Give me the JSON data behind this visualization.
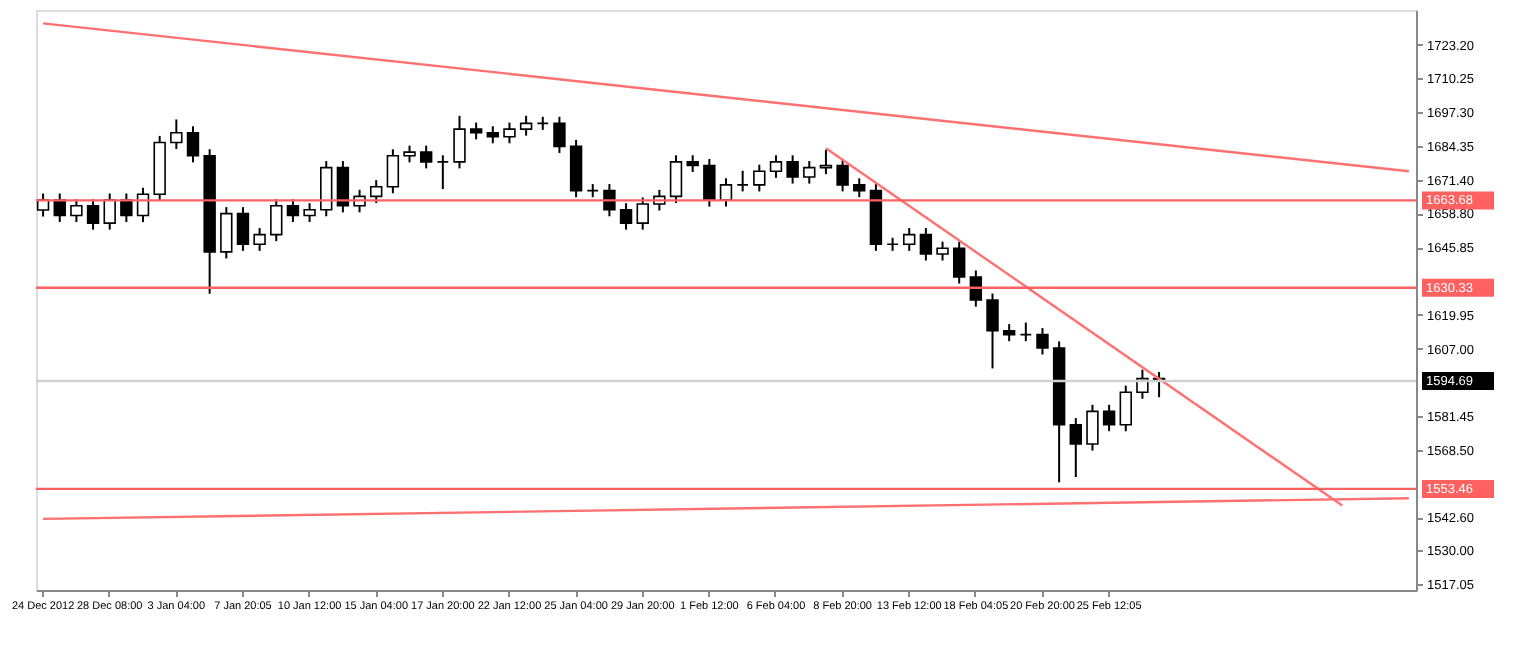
{
  "chart_data": {
    "type": "candlestick",
    "categories": [
      "24 Dec 2012",
      null,
      null,
      null,
      "28 Dec 08:00",
      null,
      null,
      null,
      "3 Jan 04:00",
      null,
      null,
      null,
      "7 Jan 20:05",
      null,
      null,
      null,
      "10 Jan 12:00",
      null,
      null,
      null,
      "15 Jan 04:00",
      null,
      null,
      null,
      "17 Jan 20:00",
      null,
      null,
      null,
      "22 Jan 12:00",
      null,
      null,
      null,
      "25 Jan 04:00",
      null,
      null,
      null,
      "29 Jan 20:00",
      null,
      null,
      null,
      "1 Feb 12:00",
      null,
      null,
      null,
      "6 Feb 04:00",
      null,
      null,
      null,
      "8 Feb 20:00",
      null,
      null,
      null,
      "13 Feb 12:00",
      null,
      null,
      null,
      "18 Feb 04:05",
      null,
      null,
      null,
      "20 Feb 20:00",
      null,
      null,
      null,
      "25 Feb 12:05",
      null,
      null,
      null,
      null,
      null,
      null,
      null,
      null,
      null,
      null,
      null,
      null,
      null,
      null,
      null,
      null,
      null,
      null
    ],
    "color": "#000000",
    "ohlc": [
      [
        1660.0,
        1666.3,
        1657.5,
        1663.8
      ],
      [
        1663.8,
        1666.3,
        1655.4,
        1657.9
      ],
      [
        1657.9,
        1664.1,
        1655.4,
        1661.6
      ],
      [
        1661.6,
        1664.1,
        1652.5,
        1655.0
      ],
      [
        1655.0,
        1666.3,
        1652.5,
        1663.8
      ],
      [
        1663.8,
        1666.3,
        1655.4,
        1657.9
      ],
      [
        1657.9,
        1668.5,
        1655.4,
        1666.0
      ],
      [
        1666.0,
        1688.3,
        1663.5,
        1685.8
      ],
      [
        1685.8,
        1694.6,
        1683.3,
        1689.5
      ],
      [
        1689.5,
        1692.0,
        1678.2,
        1680.7
      ],
      [
        1680.7,
        1683.2,
        1628.0,
        1644.0
      ],
      [
        1644.0,
        1661.1,
        1641.5,
        1658.6
      ],
      [
        1658.6,
        1661.1,
        1644.4,
        1646.9
      ],
      [
        1646.9,
        1653.1,
        1644.4,
        1650.6
      ],
      [
        1650.6,
        1664.1,
        1648.1,
        1661.6
      ],
      [
        1661.6,
        1664.1,
        1655.4,
        1657.9
      ],
      [
        1657.9,
        1662.6,
        1655.4,
        1660.1
      ],
      [
        1660.1,
        1678.7,
        1657.6,
        1676.2
      ],
      [
        1676.2,
        1678.7,
        1659.1,
        1661.6
      ],
      [
        1661.6,
        1667.7,
        1659.1,
        1665.2
      ],
      [
        1665.2,
        1671.4,
        1662.7,
        1668.9
      ],
      [
        1668.9,
        1683.2,
        1666.4,
        1680.7
      ],
      [
        1680.7,
        1684.6,
        1678.2,
        1682.1
      ],
      [
        1682.1,
        1684.6,
        1675.9,
        1678.4
      ],
      [
        1678.4,
        1680.9,
        1668.0,
        1678.4
      ],
      [
        1678.4,
        1696.0,
        1675.9,
        1690.9
      ],
      [
        1690.9,
        1693.4,
        1687.0,
        1689.5
      ],
      [
        1689.5,
        1692.0,
        1685.5,
        1688.0
      ],
      [
        1688.0,
        1693.4,
        1685.5,
        1690.9
      ],
      [
        1690.9,
        1696.0,
        1688.4,
        1693.1
      ],
      [
        1693.1,
        1695.6,
        1690.6,
        1693.1
      ],
      [
        1693.1,
        1695.6,
        1681.8,
        1684.3
      ],
      [
        1684.3,
        1686.8,
        1664.9,
        1667.4
      ],
      [
        1667.4,
        1669.9,
        1664.9,
        1667.4
      ],
      [
        1667.4,
        1669.9,
        1657.6,
        1660.1
      ],
      [
        1660.1,
        1662.6,
        1652.5,
        1655.0
      ],
      [
        1655.0,
        1664.8,
        1652.5,
        1662.3
      ],
      [
        1662.3,
        1667.7,
        1659.8,
        1665.2
      ],
      [
        1665.2,
        1680.9,
        1662.7,
        1678.4
      ],
      [
        1678.4,
        1680.9,
        1674.5,
        1677.0
      ],
      [
        1677.0,
        1679.5,
        1661.3,
        1663.8
      ],
      [
        1663.8,
        1672.1,
        1661.3,
        1669.6
      ],
      [
        1669.6,
        1675.0,
        1667.1,
        1669.6
      ],
      [
        1669.6,
        1677.3,
        1667.1,
        1674.8
      ],
      [
        1674.8,
        1680.9,
        1672.3,
        1678.4
      ],
      [
        1678.4,
        1680.9,
        1670.1,
        1672.6
      ],
      [
        1672.6,
        1678.7,
        1670.1,
        1676.2
      ],
      [
        1676.2,
        1683.0,
        1673.7,
        1677.0
      ],
      [
        1677.0,
        1679.5,
        1667.1,
        1669.6
      ],
      [
        1669.6,
        1672.1,
        1664.9,
        1667.4
      ],
      [
        1667.4,
        1669.9,
        1644.4,
        1646.9
      ],
      [
        1646.9,
        1649.4,
        1644.4,
        1646.9
      ],
      [
        1646.9,
        1653.1,
        1644.4,
        1650.6
      ],
      [
        1650.6,
        1653.1,
        1640.7,
        1643.2
      ],
      [
        1643.2,
        1647.9,
        1640.7,
        1645.4
      ],
      [
        1645.4,
        1647.9,
        1631.9,
        1634.4
      ],
      [
        1634.4,
        1636.9,
        1623.1,
        1625.6
      ],
      [
        1625.6,
        1628.1,
        1599.5,
        1613.9
      ],
      [
        1613.9,
        1616.4,
        1609.9,
        1612.4
      ],
      [
        1612.4,
        1617.0,
        1609.9,
        1612.4
      ],
      [
        1612.4,
        1614.9,
        1604.8,
        1607.3
      ],
      [
        1607.3,
        1609.8,
        1556.0,
        1578.0
      ],
      [
        1578.0,
        1580.5,
        1558.0,
        1570.6
      ],
      [
        1570.6,
        1585.6,
        1568.1,
        1583.1
      ],
      [
        1583.1,
        1585.6,
        1575.5,
        1578.0
      ],
      [
        1578.0,
        1592.9,
        1575.5,
        1590.4
      ],
      [
        1590.4,
        1599.0,
        1587.9,
        1595.6
      ],
      [
        1595.6,
        1598.1,
        1588.5,
        1594.7
      ],
      null,
      null,
      null,
      null,
      null,
      null,
      null,
      null,
      null,
      null,
      null,
      null,
      null,
      null,
      null
    ],
    "series": [
      {
        "type": "line",
        "color": "#ff7070",
        "values": [
          1731.3,
          null,
          null,
          null,
          null,
          null,
          null,
          null,
          null,
          null,
          null,
          null,
          null,
          null,
          null,
          null,
          null,
          null,
          null,
          null,
          null,
          null,
          null,
          null,
          null,
          null,
          null,
          null,
          null,
          null,
          null,
          null,
          null,
          null,
          null,
          null,
          null,
          null,
          null,
          null,
          null,
          null,
          null,
          null,
          null,
          null,
          null,
          null,
          null,
          null,
          null,
          null,
          null,
          null,
          null,
          null,
          null,
          null,
          null,
          null,
          null,
          null,
          null,
          null,
          null,
          null,
          null,
          null,
          null,
          null,
          null,
          null,
          null,
          null,
          null,
          null,
          null,
          null,
          null,
          null,
          null,
          null,
          1674.8
        ]
      },
      {
        "type": "line",
        "color": "#ff7070",
        "values": [
          1542.0,
          null,
          null,
          null,
          null,
          null,
          null,
          null,
          null,
          null,
          null,
          null,
          null,
          null,
          null,
          null,
          null,
          null,
          null,
          null,
          null,
          null,
          null,
          null,
          null,
          null,
          null,
          null,
          null,
          null,
          null,
          null,
          null,
          null,
          null,
          null,
          null,
          null,
          null,
          null,
          null,
          null,
          null,
          null,
          null,
          null,
          null,
          null,
          null,
          null,
          null,
          null,
          null,
          null,
          null,
          null,
          null,
          null,
          null,
          null,
          null,
          null,
          null,
          null,
          null,
          null,
          null,
          null,
          null,
          null,
          null,
          null,
          null,
          null,
          null,
          null,
          null,
          null,
          null,
          null,
          null,
          null,
          1549.9
        ]
      },
      {
        "type": "line",
        "color": "#ff7070",
        "values": [
          null,
          null,
          null,
          null,
          null,
          null,
          null,
          null,
          null,
          null,
          null,
          null,
          null,
          null,
          null,
          null,
          null,
          null,
          null,
          null,
          null,
          null,
          null,
          null,
          null,
          null,
          null,
          null,
          null,
          null,
          null,
          null,
          null,
          null,
          null,
          null,
          null,
          null,
          null,
          null,
          null,
          null,
          null,
          null,
          null,
          null,
          null,
          1683.6,
          null,
          null,
          null,
          null,
          null,
          null,
          null,
          null,
          null,
          null,
          null,
          null,
          null,
          null,
          null,
          null,
          null,
          null,
          null,
          null,
          null,
          null,
          null,
          null,
          null,
          null,
          null,
          null,
          null,
          null,
          1547.1,
          null,
          null,
          null,
          null
        ]
      }
    ],
    "ylim": [
      1514.85,
      1736.4
    ],
    "yticks": [
      1517.05,
      {
        "value": 1530,
        "label": "1530.00"
      },
      {
        "value": 1542.6,
        "label": "1542.60"
      },
      {
        "value": 1568.5,
        "label": "1568.50"
      },
      1581.45,
      {
        "value": 1607,
        "label": "1607.00"
      },
      1619.95,
      1645.85,
      {
        "value": 1658.8,
        "label": "1658.80"
      },
      {
        "value": 1671.4,
        "label": "1671.40"
      },
      1684.35,
      {
        "value": 1697.3,
        "label": "1697.30"
      },
      1710.25,
      {
        "value": 1723.2,
        "label": "1723.20"
      }
    ],
    "ref_lines": [
      {
        "axis": "y",
        "value": 1663.68,
        "label": "1663.68",
        "color": "#ff6060"
      },
      {
        "axis": "y",
        "value": 1630.33,
        "label": "1630.33",
        "color": "#ff6060"
      },
      {
        "axis": "y",
        "value": 1594.69,
        "label": "1594.69",
        "color": "#d0d0d0"
      },
      {
        "axis": "y",
        "value": 1553.46,
        "label": "1553.46",
        "color": "#ff6060"
      }
    ],
    "grid": false
  }
}
